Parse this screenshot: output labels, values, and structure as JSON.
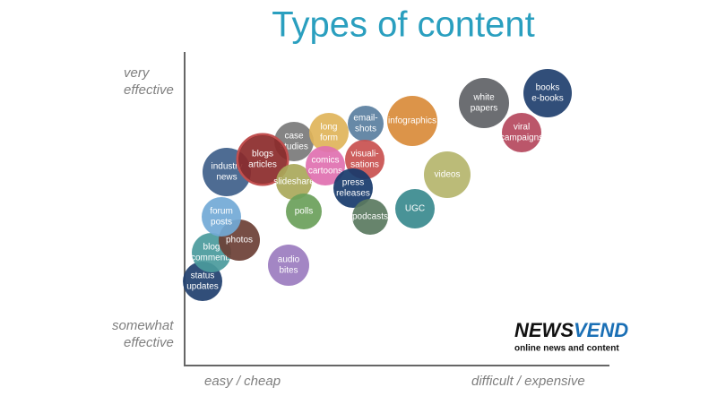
{
  "header": {
    "title": "Types of content"
  },
  "axes": {
    "y_top": [
      "very",
      "effective"
    ],
    "y_bottom": [
      "somewhat",
      "effective"
    ],
    "x_left": "easy / cheap",
    "x_right": "difficult / expensive"
  },
  "nodes": [
    {
      "lines": [
        "audio",
        "bites"
      ],
      "color": "#9b7cbf"
    },
    {
      "lines": [
        "status",
        "updates"
      ],
      "color": "#1f3f6e"
    },
    {
      "lines": [
        "blog",
        "comments"
      ],
      "color": "#4a9a9c"
    },
    {
      "lines": [
        "photos"
      ],
      "color": "#6b3f35"
    },
    {
      "lines": [
        "forum",
        "posts"
      ],
      "color": "#72a9d6"
    },
    {
      "lines": [
        "industry",
        "news"
      ],
      "color": "#3f5f8a"
    },
    {
      "lines": [
        "case",
        "studies"
      ],
      "color": "#7a7a7a"
    },
    {
      "lines": [
        "blogs",
        "articles"
      ],
      "color": "#8b2a2a"
    },
    {
      "lines": [
        "slideshare"
      ],
      "color": "#a9a85a"
    },
    {
      "lines": [
        "polls"
      ],
      "color": "#6a9f5a"
    },
    {
      "lines": [
        "long",
        "form"
      ],
      "color": "#e0b45a"
    },
    {
      "lines": [
        "comics",
        "cartoons"
      ],
      "color": "#e070b0"
    },
    {
      "lines": [
        "email-",
        "shots"
      ],
      "color": "#5a7fa0"
    },
    {
      "lines": [
        "visuali-",
        "sations"
      ],
      "color": "#c9504f"
    },
    {
      "lines": [
        "press",
        "releases"
      ],
      "color": "#173a6b"
    },
    {
      "lines": [
        "podcasts"
      ],
      "color": "#5a7a5f"
    },
    {
      "lines": [
        "infographics"
      ],
      "color": "#d98b3a"
    },
    {
      "lines": [
        "UGC"
      ],
      "color": "#3a8a8e"
    },
    {
      "lines": [
        "videos"
      ],
      "color": "#b5b56c"
    },
    {
      "lines": [
        "white",
        "papers"
      ],
      "color": "#5f6266"
    },
    {
      "lines": [
        "viral",
        "campaigns"
      ],
      "color": "#b5485d"
    },
    {
      "lines": [
        "books",
        "e-books"
      ],
      "color": "#1f3f6e"
    }
  ],
  "logo": {
    "name_parts": [
      "NEWS",
      "VEND"
    ],
    "tagline": "online news and content"
  }
}
